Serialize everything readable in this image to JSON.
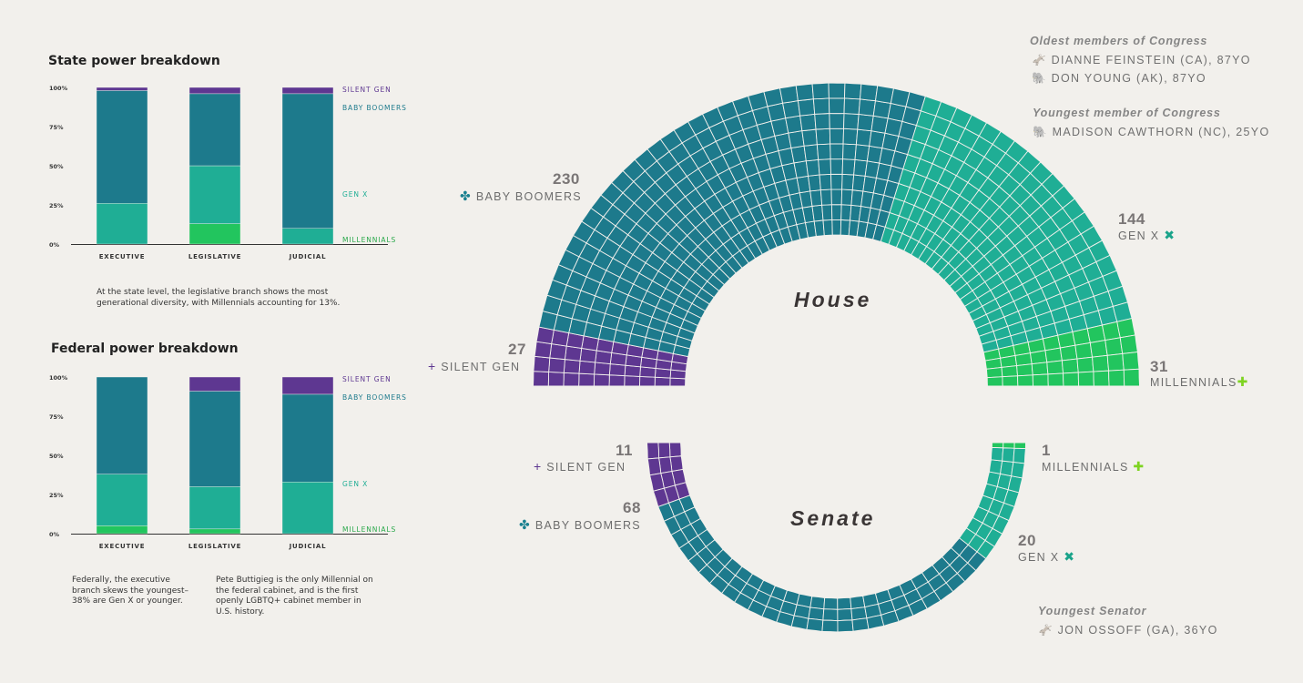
{
  "colors": {
    "silent": "#5e3791",
    "boomers": "#1d7a8c",
    "genx": "#1fae95",
    "millennials": "#22c55e",
    "millennials_marker": "#7ed321",
    "genx_marker": "#1aa38a",
    "boomers_marker": "#19808f",
    "silent_marker": "#5e3791"
  },
  "chart_data": [
    {
      "type": "bar",
      "subtype": "stacked-100",
      "title": "State power breakdown",
      "categories": [
        "EXECUTIVE",
        "LEGISLATIVE",
        "JUDICIAL"
      ],
      "y_ticks": [
        "0%",
        "25%",
        "50%",
        "75%",
        "100%"
      ],
      "series": [
        {
          "name": "MILLENNIALS",
          "values": [
            0,
            13,
            0
          ]
        },
        {
          "name": "GEN X",
          "values": [
            26,
            37,
            10
          ]
        },
        {
          "name": "BABY BOOMERS",
          "values": [
            72,
            46,
            86
          ]
        },
        {
          "name": "SILENT GEN",
          "values": [
            2,
            4,
            4
          ]
        }
      ],
      "ylim": [
        0,
        100
      ],
      "highlight_category": "LEGISLATIVE",
      "annotations": [
        {
          "category": "LEGISLATIVE",
          "text": "At the state level, the legislative branch shows the most generational diversity, with Millennials accounting for 13%."
        }
      ]
    },
    {
      "type": "bar",
      "subtype": "stacked-100",
      "title": "Federal power breakdown",
      "categories": [
        "EXECUTIVE",
        "LEGISLATIVE",
        "JUDICIAL"
      ],
      "y_ticks": [
        "0%",
        "25%",
        "50%",
        "75%",
        "100%"
      ],
      "series": [
        {
          "name": "MILLENNIALS",
          "values": [
            5,
            3,
            0
          ]
        },
        {
          "name": "GEN X",
          "values": [
            33,
            27,
            33
          ]
        },
        {
          "name": "BABY BOOMERS",
          "values": [
            62,
            61,
            56
          ]
        },
        {
          "name": "SILENT GEN",
          "values": [
            0,
            9,
            11
          ]
        }
      ],
      "ylim": [
        0,
        100
      ],
      "annotations": [
        {
          "category": "EXECUTIVE",
          "text": "Federally, the executive branch skews the youngest–38% are Gen X or younger."
        },
        {
          "category": "LEGISLATIVE",
          "text": "Pete Buttigieg is the only Millennial on the federal cabinet, and is the first openly LGBTQ+ cabinet member in U.S. history."
        }
      ]
    },
    {
      "type": "pie",
      "subtype": "half-donut",
      "title": "House",
      "series": [
        {
          "name": "SILENT GEN",
          "values": [
            27
          ]
        },
        {
          "name": "BABY BOOMERS",
          "values": [
            230
          ]
        },
        {
          "name": "GEN X",
          "values": [
            144
          ]
        },
        {
          "name": "MILLENNIALS",
          "values": [
            31
          ]
        }
      ]
    },
    {
      "type": "pie",
      "subtype": "half-donut",
      "title": "Senate",
      "series": [
        {
          "name": "SILENT GEN",
          "values": [
            11
          ]
        },
        {
          "name": "BABY BOOMERS",
          "values": [
            68
          ]
        },
        {
          "name": "GEN X",
          "values": [
            20
          ]
        },
        {
          "name": "MILLENNIALS",
          "values": [
            1
          ]
        }
      ]
    }
  ],
  "labels": {
    "state_title": "State power breakdown",
    "federal_title": "Federal power breakdown",
    "state_note": "At the state level, the legislative branch shows the most generational diversity, with Millennials accounting for 13%.",
    "fed_note_exec": "Federally, the executive branch skews the youngest–38% are Gen X or younger.",
    "fed_note_leg": "Pete Buttigieg is the only Millennial on the federal cabinet, and is the first openly LGBTQ+ cabinet member in U.S. history.",
    "house": "House",
    "senate": "Senate",
    "house_boomers_num": "230",
    "house_boomers_lbl": "BABY BOOMERS",
    "house_genx_num": "144",
    "house_genx_lbl": "GEN X",
    "house_silent_num": "27",
    "house_silent_lbl": "SILENT GEN",
    "house_mill_num": "31",
    "house_mill_lbl": "MILLENNIALS",
    "senate_silent_num": "11",
    "senate_silent_lbl": "SILENT GEN",
    "senate_boomers_num": "68",
    "senate_boomers_lbl": "BABY BOOMERS",
    "senate_mill_num": "1",
    "senate_mill_lbl": "MILLENNIALS",
    "senate_genx_num": "20",
    "senate_genx_lbl": "GEN X",
    "oldest_title": "Oldest members of Congress",
    "oldest_1": "DIANNE FEINSTEIN (CA), 87YO",
    "oldest_2": "DON YOUNG (AK), 87YO",
    "youngest_title": "Youngest member of Congress",
    "youngest_1": "MADISON CAWTHORN (NC), 25YO",
    "youngest_senator_title": "Youngest Senator",
    "youngest_senator_1": "JON OSSOFF (GA), 36YO"
  }
}
